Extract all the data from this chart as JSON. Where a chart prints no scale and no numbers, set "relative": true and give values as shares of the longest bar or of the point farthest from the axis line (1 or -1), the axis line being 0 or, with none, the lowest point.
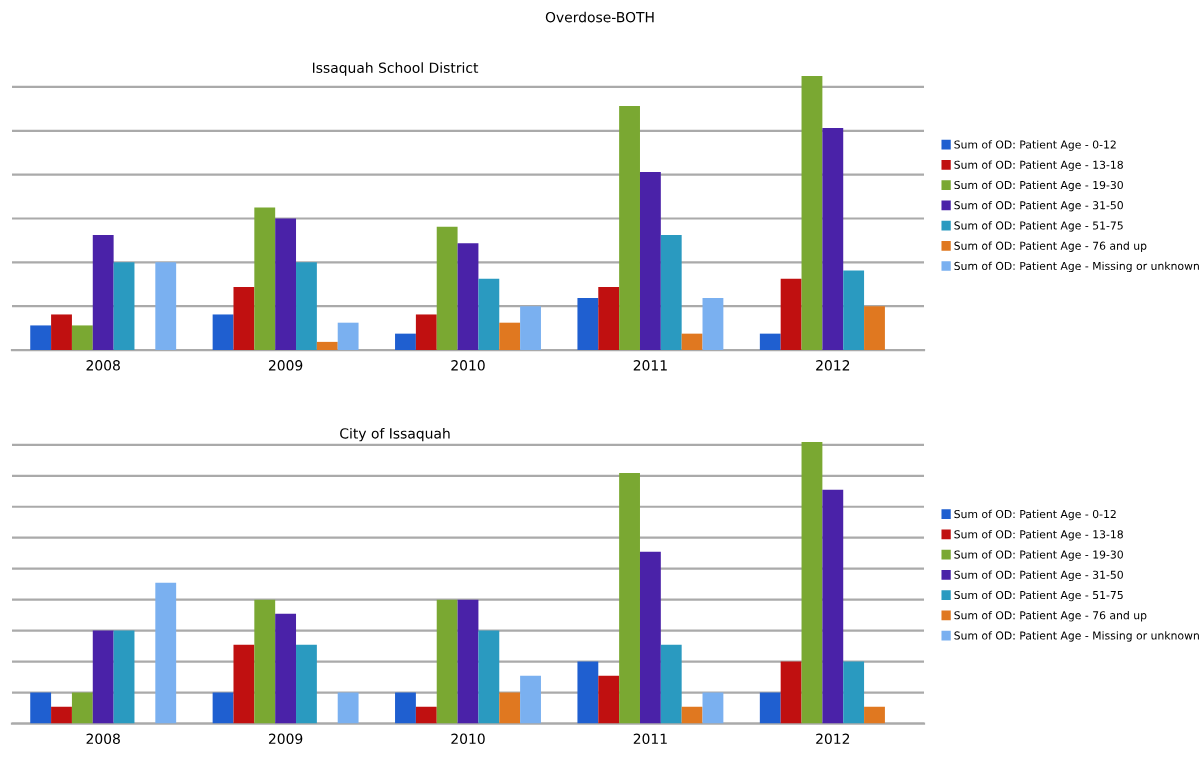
{
  "chart_data": [
    {
      "type": "bar",
      "title": "Issaquah School District",
      "annotations": [
        "Overdose-BOTH"
      ],
      "relative": true,
      "grid": "y",
      "legend": "right",
      "categories": [
        "2008",
        "2009",
        "2010",
        "2011",
        "2012"
      ],
      "series": [
        {
          "name": "Sum of OD: Patient Age - 0-12",
          "color": "#1f5fd0",
          "values": [
            0.09,
            0.13,
            0.06,
            0.19,
            0.06
          ]
        },
        {
          "name": "Sum of OD: Patient Age - 13-18",
          "color": "#c01010",
          "values": [
            0.13,
            0.23,
            0.13,
            0.23,
            0.26
          ]
        },
        {
          "name": "Sum of OD: Patient Age - 19-30",
          "color": "#7aa832",
          "values": [
            0.09,
            0.52,
            0.45,
            0.89,
            1
          ]
        },
        {
          "name": "Sum of OD: Patient Age - 31-50",
          "color": "#4a22a8",
          "values": [
            0.42,
            0.48,
            0.39,
            0.65,
            0.81
          ]
        },
        {
          "name": "Sum of OD: Patient Age - 51-75",
          "color": "#2a9ac0",
          "values": [
            0.32,
            0.32,
            0.26,
            0.42,
            0.29
          ]
        },
        {
          "name": "Sum of OD: Patient Age - 76 and up",
          "color": "#e07820",
          "values": [
            0,
            0.03,
            0.1,
            0.06,
            0.16
          ]
        },
        {
          "name": "Sum of OD: Patient Age - Missing or unknown",
          "color": "#7ab0f0",
          "values": [
            0.32,
            0.1,
            0.16,
            0.19,
            0
          ]
        }
      ]
    },
    {
      "type": "bar",
      "title": "City of Issaquah",
      "relative": true,
      "grid": "y",
      "legend": "right",
      "categories": [
        "2008",
        "2009",
        "2010",
        "2011",
        "2012"
      ],
      "series": [
        {
          "name": "Sum of OD: Patient Age - 0-12",
          "color": "#1f5fd0",
          "values": [
            0.11,
            0.11,
            0.11,
            0.22,
            0.11
          ]
        },
        {
          "name": "Sum of OD: Patient Age - 13-18",
          "color": "#c01010",
          "values": [
            0.06,
            0.28,
            0.06,
            0.17,
            0.22
          ]
        },
        {
          "name": "Sum of OD: Patient Age - 19-30",
          "color": "#7aa832",
          "values": [
            0.11,
            0.44,
            0.44,
            0.89,
            1
          ]
        },
        {
          "name": "Sum of OD: Patient Age - 31-50",
          "color": "#4a22a8",
          "values": [
            0.33,
            0.39,
            0.44,
            0.61,
            0.83
          ]
        },
        {
          "name": "Sum of OD: Patient Age - 51-75",
          "color": "#2a9ac0",
          "values": [
            0.33,
            0.28,
            0.33,
            0.28,
            0.22
          ]
        },
        {
          "name": "Sum of OD: Patient Age - 76 and up",
          "color": "#e07820",
          "values": [
            0,
            0,
            0.11,
            0.06,
            0.06
          ]
        },
        {
          "name": "Sum of OD: Patient Age - Missing or unknown",
          "color": "#7ab0f0",
          "values": [
            0.5,
            0.11,
            0.17,
            0.11,
            0
          ]
        }
      ]
    }
  ]
}
